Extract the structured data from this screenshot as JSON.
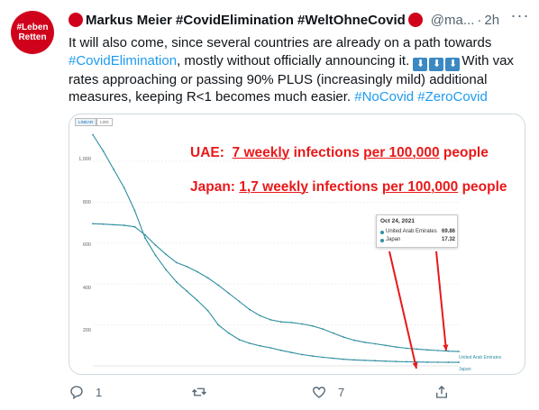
{
  "avatar": {
    "line1": "#Leben",
    "line2": "Retten"
  },
  "tweet": {
    "author_name": "Markus Meier #CovidElimination #WeltOhneCovid",
    "handle": "@ma...",
    "separator": "·",
    "time": "2h",
    "text_part1": "It will also come, since several countries are already on a path towards",
    "hashtag1": "#CovidElimination",
    "text_part2": ", mostly without officially announcing it. ",
    "text_part3": "With vax rates approaching or passing 90% PLUS (increasingly mild) additional measures, keeping R<1 becomes much easier. ",
    "hashtag2": "#NoCovid",
    "hashtag3": "#ZeroCovid",
    "arrow_emoji": "⬇"
  },
  "chart": {
    "toggle_linear": "LINEAR",
    "toggle_log": "LOG",
    "annotation_uae": {
      "country": "UAE:",
      "value": "7 weekly",
      "mid": "infections",
      "per": "per 100,000",
      "tail": "people"
    },
    "annotation_japan": {
      "country": "Japan:",
      "value": "1,7 weekly",
      "mid": "infections",
      "per": "per 100,000",
      "tail": "people"
    },
    "tooltip": {
      "date": "Oct 24, 2021",
      "rows": [
        {
          "name": "United Arab Emirates",
          "value": "69.86"
        },
        {
          "name": "Japan",
          "value": "17.32"
        }
      ]
    },
    "end_label_uae": "United Arab Emirates",
    "end_label_japan": "Japan",
    "y_ticks": [
      "1,000",
      "800",
      "600",
      "400",
      "200"
    ],
    "line_color": "#2f8fa0",
    "annotation_color": "#e8191a"
  },
  "chart_data": {
    "type": "line",
    "ylim": [
      0,
      1150
    ],
    "series": [
      {
        "name": "United Arab Emirates",
        "values": [
          695,
          693,
          690,
          687,
          680,
          640,
          590,
          545,
          505,
          485,
          460,
          430,
          395,
          355,
          315,
          275,
          245,
          225,
          215,
          212,
          205,
          195,
          180,
          160,
          140,
          125,
          115,
          108,
          100,
          92,
          86,
          82,
          78,
          75,
          72,
          70
        ]
      },
      {
        "name": "Japan",
        "values": [
          1130,
          1050,
          960,
          870,
          760,
          625,
          540,
          470,
          410,
          365,
          320,
          270,
          200,
          160,
          128,
          110,
          98,
          88,
          76,
          65,
          55,
          48,
          42,
          37,
          32,
          29,
          27,
          25,
          23,
          21,
          20,
          19,
          18,
          17.5,
          17.3,
          17.3
        ]
      }
    ]
  },
  "actions": {
    "reply_count": "1",
    "retweet_count": "",
    "like_count": "7"
  }
}
